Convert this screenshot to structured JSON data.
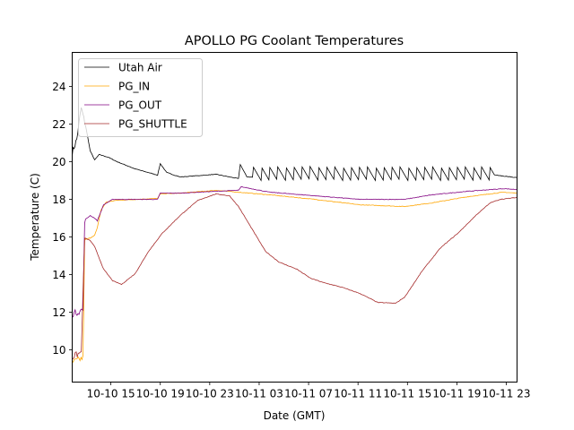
{
  "chart_data": {
    "type": "line",
    "title": "APOLLO PG Coolant Temperatures",
    "xlabel": "Date (GMT)",
    "ylabel": "Temperature (C)",
    "x_units": "hours since 10-10 00:00 GMT",
    "xlim": [
      11.87,
      47.87
    ],
    "ylim": [
      8.29,
      25.81
    ],
    "grid": false,
    "legend_position": "top-left",
    "x_ticks": [
      {
        "value": 15,
        "label": "10-10 15"
      },
      {
        "value": 19,
        "label": "10-10 19"
      },
      {
        "value": 23,
        "label": "10-10 23"
      },
      {
        "value": 27,
        "label": "10-11 03"
      },
      {
        "value": 31,
        "label": "10-11 07"
      },
      {
        "value": 35,
        "label": "10-11 11"
      },
      {
        "value": 39,
        "label": "10-11 15"
      },
      {
        "value": 43,
        "label": "10-11 19"
      },
      {
        "value": 47,
        "label": "10-11 23"
      }
    ],
    "y_ticks": [
      {
        "value": 10,
        "label": "10"
      },
      {
        "value": 12,
        "label": "12"
      },
      {
        "value": 14,
        "label": "14"
      },
      {
        "value": 16,
        "label": "16"
      },
      {
        "value": 18,
        "label": "18"
      },
      {
        "value": 20,
        "label": "20"
      },
      {
        "value": 22,
        "label": "22"
      },
      {
        "value": 24,
        "label": "24"
      }
    ],
    "series": [
      {
        "name": "Utah Air",
        "color": "#000000",
        "x": [
          11.87,
          12.24,
          12.6,
          12.96,
          13.33,
          13.69,
          14.05,
          14.78,
          15.51,
          16.96,
          18.78,
          19.0,
          19.51,
          20.6,
          23.51,
          25.33,
          25.47,
          26.0,
          27.0,
          28.5,
          30.0,
          32.0,
          34.0,
          36.0,
          38.0,
          40.0,
          42.0,
          44.0,
          45.0,
          46.0,
          47.87
        ],
        "y": [
          20.48,
          21.19,
          22.86,
          21.9,
          20.57,
          20.1,
          20.38,
          20.24,
          20.0,
          19.62,
          19.29,
          19.9,
          19.43,
          19.19,
          19.33,
          19.1,
          19.86,
          19.2,
          19.15,
          19.2,
          19.18,
          19.15,
          19.12,
          19.1,
          19.12,
          19.15,
          19.18,
          19.2,
          19.3,
          19.3,
          19.15
        ],
        "sawtooth": {
          "start": 26.5,
          "end": 46.0,
          "period_hours": 0.66,
          "low": 19.0,
          "high": 19.75
        }
      },
      {
        "name": "PG_IN",
        "color": "#FFA500",
        "x": [
          11.87,
          12.74,
          12.88,
          13.33,
          13.69,
          13.9,
          14.2,
          14.63,
          15.51,
          18.78,
          19.0,
          20.6,
          23.51,
          25.33,
          27.87,
          31.51,
          35.15,
          38.78,
          40.96,
          43.87,
          46.78,
          47.87
        ],
        "y": [
          9.33,
          9.57,
          15.85,
          15.95,
          16.1,
          16.48,
          17.43,
          17.86,
          17.95,
          18.05,
          18.29,
          18.33,
          18.48,
          18.38,
          18.24,
          18.0,
          17.71,
          17.62,
          17.81,
          18.14,
          18.38,
          18.33
        ]
      },
      {
        "name": "PG_OUT",
        "color": "#800080",
        "x": [
          11.87,
          12.74,
          12.88,
          13.33,
          13.69,
          13.9,
          14.41,
          15.15,
          18.78,
          19.0,
          20.6,
          23.51,
          25.33,
          25.55,
          27.87,
          31.51,
          35.15,
          38.78,
          40.96,
          43.87,
          46.78,
          47.87
        ],
        "y": [
          11.9,
          12.14,
          16.9,
          17.14,
          17.0,
          16.86,
          17.71,
          18.0,
          18.0,
          18.33,
          18.33,
          18.43,
          18.48,
          18.67,
          18.38,
          18.19,
          18.0,
          18.0,
          18.24,
          18.43,
          18.57,
          18.52
        ]
      },
      {
        "name": "PG_SHUTTLE",
        "color": "#A52A2A",
        "x": [
          11.87,
          12.6,
          12.88,
          13.33,
          13.69,
          14.41,
          15.15,
          15.87,
          16.96,
          18.05,
          19.15,
          20.6,
          22.05,
          23.51,
          24.6,
          25.33,
          26.42,
          27.51,
          28.6,
          30.05,
          31.15,
          32.24,
          33.69,
          35.15,
          36.6,
          38.05,
          38.78,
          40.24,
          41.69,
          43.15,
          44.6,
          45.69,
          46.49,
          47.87
        ],
        "y": [
          9.62,
          9.86,
          15.95,
          15.81,
          15.48,
          14.29,
          13.67,
          13.48,
          14.05,
          15.24,
          16.19,
          17.14,
          17.95,
          18.29,
          18.19,
          17.62,
          16.43,
          15.24,
          14.67,
          14.29,
          13.81,
          13.57,
          13.33,
          13.0,
          12.52,
          12.48,
          12.81,
          14.24,
          15.43,
          16.24,
          17.19,
          17.81,
          18.0,
          18.1
        ]
      }
    ]
  }
}
